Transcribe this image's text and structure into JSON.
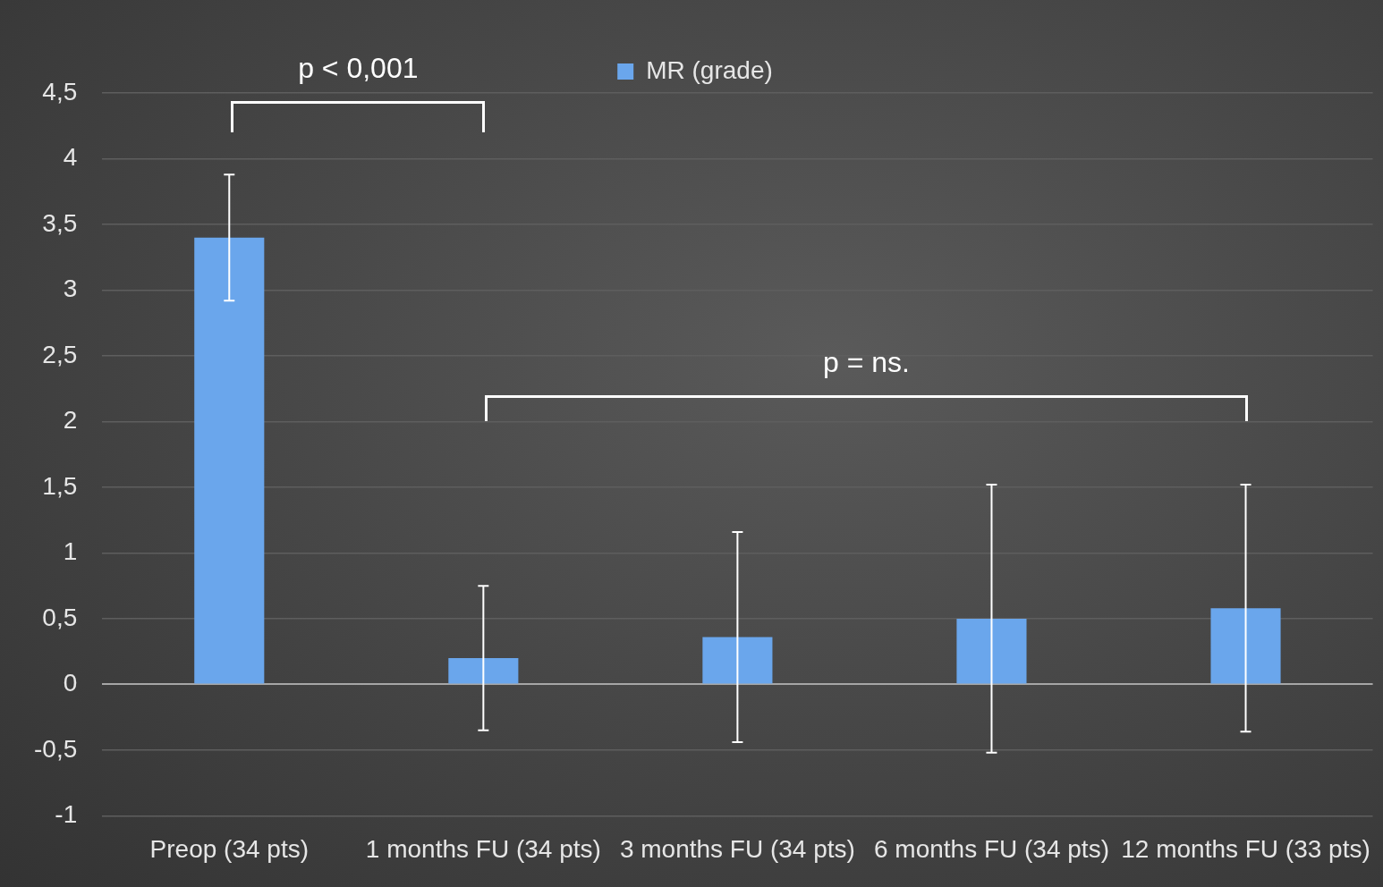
{
  "chart_data": {
    "type": "bar",
    "categories": [
      "Preop (34 pts)",
      "1 months FU (34 pts)",
      "3 months FU (34 pts)",
      "6 months FU (34 pts)",
      "12 months FU (33 pts)"
    ],
    "series": [
      {
        "name": "MR (grade)",
        "color": "#6aa6ec",
        "values": [
          3.4,
          0.2,
          0.36,
          0.5,
          0.58
        ],
        "errors": [
          0.48,
          0.55,
          0.8,
          1.02,
          0.94
        ]
      }
    ],
    "ylim": [
      -1,
      4.5
    ],
    "yticks": [
      {
        "value": -1,
        "label": "-1"
      },
      {
        "value": -0.5,
        "label": "-0,5"
      },
      {
        "value": 0,
        "label": "0"
      },
      {
        "value": 0.5,
        "label": "0,5"
      },
      {
        "value": 1,
        "label": "1"
      },
      {
        "value": 1.5,
        "label": "1,5"
      },
      {
        "value": 2,
        "label": "2"
      },
      {
        "value": 2.5,
        "label": "2,5"
      },
      {
        "value": 3,
        "label": "3"
      },
      {
        "value": 3.5,
        "label": "3,5"
      },
      {
        "value": 4,
        "label": "4"
      },
      {
        "value": 4.5,
        "label": "4,5"
      }
    ],
    "grid": "y",
    "legend": "top",
    "annotations": [
      "p < 0,001",
      "p = ns."
    ]
  }
}
